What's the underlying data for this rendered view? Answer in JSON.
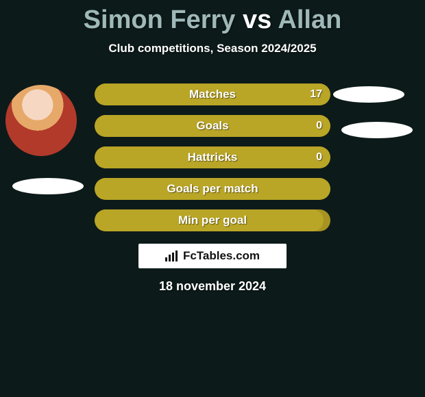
{
  "background_color": "#0d1a1a",
  "title": {
    "p1": "Simon Ferry",
    "vs": "vs",
    "p2": "Allan",
    "p1_color": "#9fb8b8",
    "vs_color": "#ffffff",
    "p2_color": "#9fb8b8",
    "fontsize": 38
  },
  "subtitle": "Club competitions, Season 2024/2025",
  "player_left": {
    "has_photo": true,
    "ellipse_color": "#ffffff"
  },
  "player_right": {
    "has_photo": false,
    "ellipse_color": "#ffffff"
  },
  "bars": {
    "container_width": 344,
    "height": 32,
    "border_radius": 16,
    "gap": 14,
    "bg_color": "#a79321",
    "fill_color": "#b9a526",
    "text_color": "#ffffff",
    "label_fontsize": 17,
    "items": [
      {
        "label": "Matches",
        "value": "17",
        "fill_pct": 100
      },
      {
        "label": "Goals",
        "value": "0",
        "fill_pct": 100
      },
      {
        "label": "Hattricks",
        "value": "0",
        "fill_pct": 100
      },
      {
        "label": "Goals per match",
        "value": "",
        "fill_pct": 100
      },
      {
        "label": "Min per goal",
        "value": "",
        "fill_pct": 97
      }
    ]
  },
  "logo": {
    "text": "FcTables.com",
    "bg_color": "#ffffff",
    "text_color": "#111111",
    "icon_color": "#111111"
  },
  "date": "18 november 2024"
}
